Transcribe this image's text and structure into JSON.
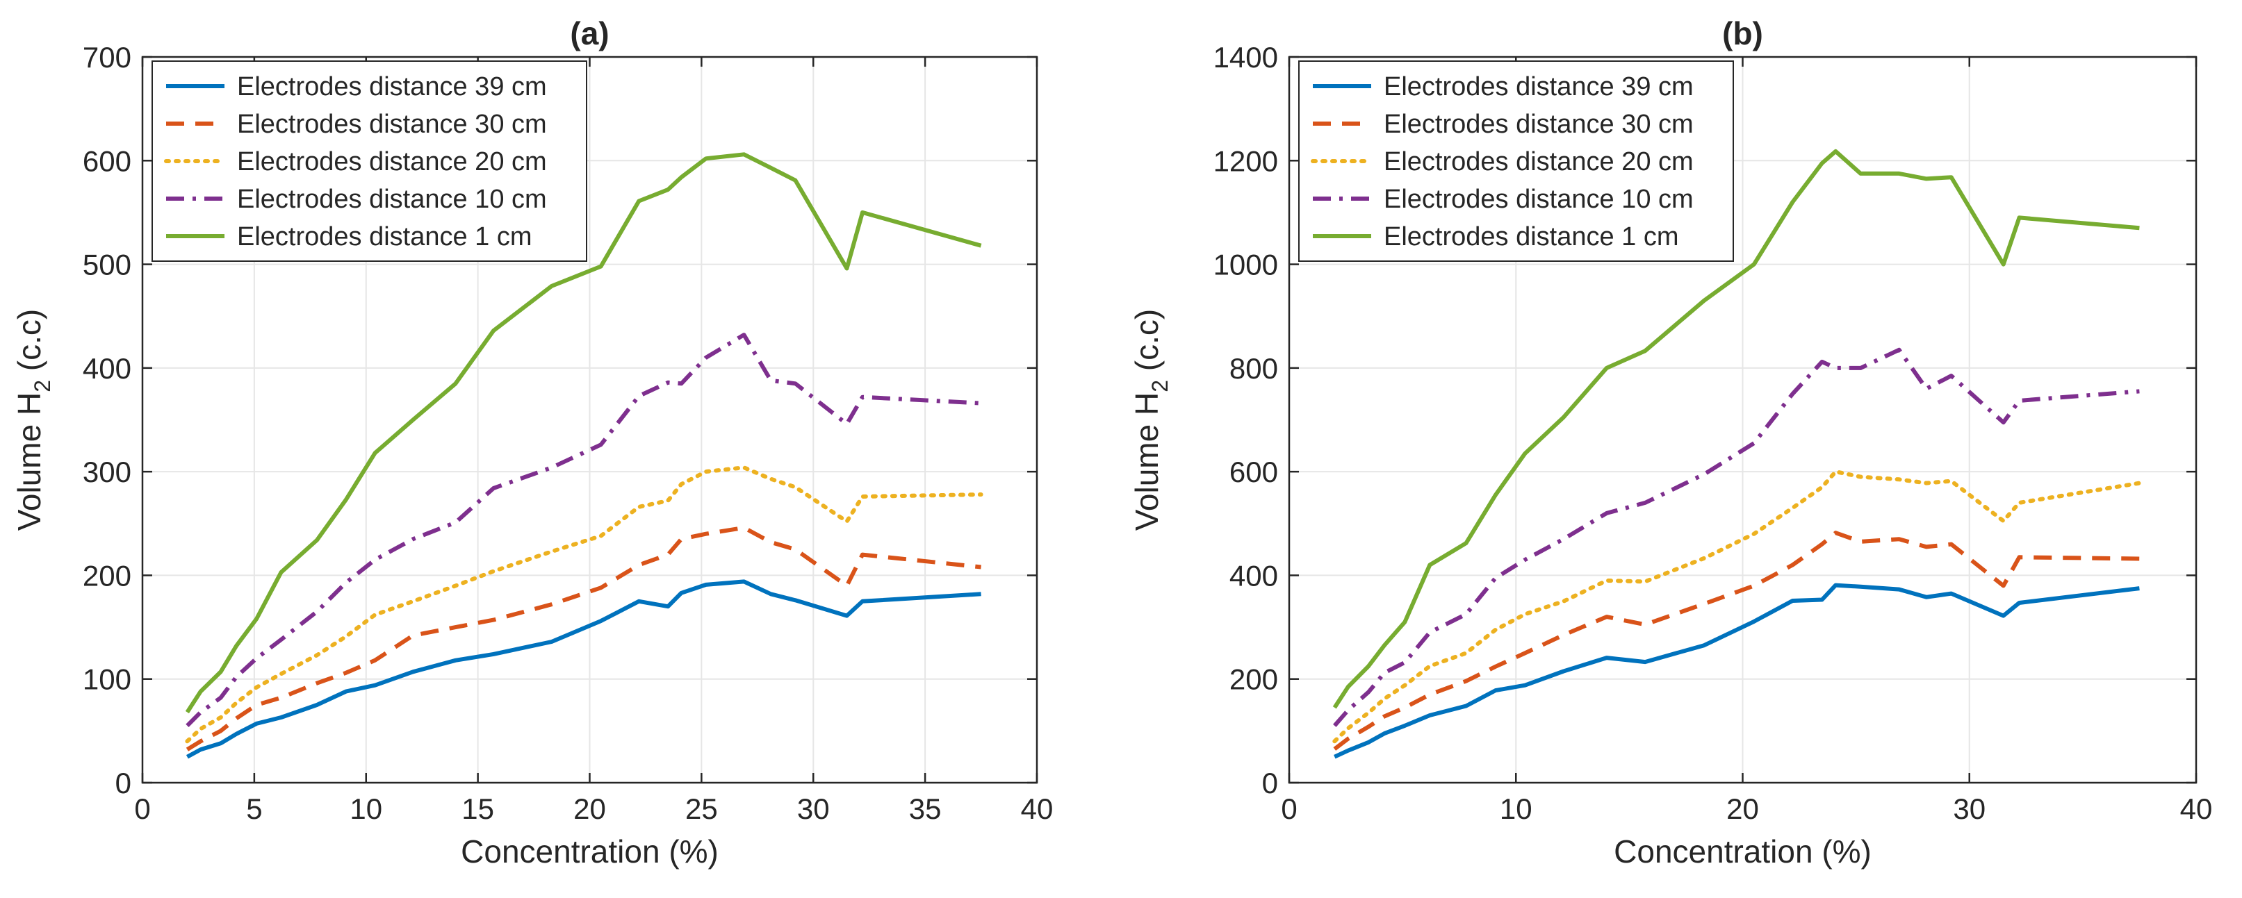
{
  "chart_data": [
    {
      "type": "line",
      "title": "(a)",
      "xlabel": "Concentration (%)",
      "ylabel": "Volume H",
      "ylabel_sub": "2",
      "ylabel_suffix": " (c.c)",
      "xlim": [
        0,
        40
      ],
      "ylim": [
        0,
        700
      ],
      "xticks": [
        0,
        5,
        10,
        15,
        20,
        25,
        30,
        35,
        40
      ],
      "yticks": [
        0,
        100,
        200,
        300,
        400,
        500,
        600,
        700
      ],
      "grid": true,
      "legend": "top-left",
      "series": [
        {
          "name": "Electrodes distance 39 cm",
          "color": "#0072BD",
          "dash": "solid",
          "x": [
            2,
            2.6,
            3.5,
            4.2,
            5.1,
            6.2,
            7.8,
            9.1,
            10.4,
            12.1,
            14,
            15.7,
            18.3,
            20.5,
            22.2,
            23.5,
            24.1,
            25.2,
            26.9,
            28.1,
            29.2,
            31.5,
            32.2,
            37.5
          ],
          "y": [
            25,
            32,
            38,
            47,
            57,
            63,
            75,
            88,
            94,
            107,
            118,
            124,
            136,
            156,
            175,
            170,
            183,
            191,
            194,
            182,
            176,
            161,
            175,
            182
          ]
        },
        {
          "name": "Electrodes distance 30 cm",
          "color": "#D95319",
          "dash": "dashed",
          "x": [
            2,
            2.6,
            3.5,
            4.2,
            5.1,
            6.2,
            7.8,
            9.1,
            10.4,
            12.1,
            14,
            15.7,
            18.3,
            20.5,
            22.2,
            23.5,
            24.1,
            25.2,
            26.9,
            28.1,
            29.2,
            31.5,
            32.2,
            37.5
          ],
          "y": [
            32,
            40,
            50,
            62,
            75,
            82,
            96,
            106,
            118,
            142,
            150,
            157,
            172,
            188,
            210,
            220,
            235,
            240,
            246,
            232,
            225,
            190,
            220,
            208
          ]
        },
        {
          "name": "Electrodes distance 20 cm",
          "color": "#EDB120",
          "dash": "dotted",
          "x": [
            2,
            2.6,
            3.5,
            4.2,
            5.1,
            6.2,
            7.8,
            9.1,
            10.4,
            12.1,
            14,
            15.7,
            18.3,
            20.5,
            22.2,
            23.5,
            24.1,
            25.2,
            26.9,
            28.1,
            29.2,
            31.5,
            32.2,
            37.5
          ],
          "y": [
            40,
            52,
            63,
            77,
            92,
            105,
            123,
            141,
            162,
            175,
            190,
            204,
            223,
            238,
            266,
            272,
            288,
            300,
            304,
            293,
            285,
            252,
            276,
            278
          ]
        },
        {
          "name": "Electrodes distance 10 cm",
          "color": "#7E2F8E",
          "dash": "dashdot",
          "x": [
            2,
            2.6,
            3.5,
            4.2,
            5.1,
            6.2,
            7.8,
            9.1,
            10.4,
            12.1,
            14,
            15.7,
            18.3,
            20.5,
            22.2,
            23.5,
            24.1,
            25.2,
            26.9,
            28.1,
            29.2,
            31.5,
            32.2,
            37.5
          ],
          "y": [
            55,
            68,
            82,
            102,
            120,
            138,
            165,
            193,
            215,
            235,
            251,
            284,
            304,
            326,
            373,
            386,
            385,
            410,
            432,
            388,
            385,
            346,
            372,
            366
          ]
        },
        {
          "name": "Electrodes distance 1 cm",
          "color": "#77AC30",
          "dash": "solid",
          "x": [
            2,
            2.6,
            3.5,
            4.2,
            5.1,
            6.2,
            7.8,
            9.1,
            10.4,
            12.1,
            14,
            15.7,
            18.3,
            20.5,
            22.2,
            23.5,
            24.1,
            25.2,
            26.9,
            28.1,
            29.2,
            31.5,
            32.2,
            37.5
          ],
          "y": [
            68,
            88,
            107,
            132,
            158,
            203,
            234,
            273,
            318,
            350,
            385,
            436,
            479,
            498,
            561,
            572,
            584,
            602,
            606,
            593,
            581,
            496,
            550,
            518
          ]
        }
      ]
    },
    {
      "type": "line",
      "title": "(b)",
      "xlabel": "Concentration (%)",
      "ylabel": "Volume H",
      "ylabel_sub": "2",
      "ylabel_suffix": " (c.c)",
      "xlim": [
        0,
        40
      ],
      "ylim": [
        0,
        1400
      ],
      "xticks": [
        0,
        10,
        20,
        30,
        40
      ],
      "yticks": [
        0,
        200,
        400,
        600,
        800,
        1000,
        1200,
        1400
      ],
      "grid": true,
      "legend": "top-left",
      "series": [
        {
          "name": "Electrodes distance 39 cm",
          "color": "#0072BD",
          "dash": "solid",
          "x": [
            2,
            2.6,
            3.5,
            4.2,
            5.1,
            6.2,
            7.8,
            9.1,
            10.4,
            12.1,
            14,
            15.7,
            18.3,
            20.5,
            22.2,
            23.5,
            24.1,
            25.2,
            26.9,
            28.1,
            29.2,
            31.5,
            32.2,
            37.5
          ],
          "y": [
            50,
            62,
            78,
            95,
            110,
            130,
            148,
            178,
            188,
            215,
            241,
            233,
            265,
            311,
            351,
            353,
            381,
            378,
            373,
            358,
            365,
            322,
            347,
            375
          ]
        },
        {
          "name": "Electrodes distance 30 cm",
          "color": "#D95319",
          "dash": "dashed",
          "x": [
            2,
            2.6,
            3.5,
            4.2,
            5.1,
            6.2,
            7.8,
            9.1,
            10.4,
            12.1,
            14,
            15.7,
            18.3,
            20.5,
            22.2,
            23.5,
            24.1,
            25.2,
            26.9,
            28.1,
            29.2,
            31.5,
            32.2,
            37.5
          ],
          "y": [
            65,
            85,
            108,
            128,
            145,
            170,
            196,
            224,
            250,
            285,
            320,
            305,
            345,
            380,
            420,
            460,
            482,
            465,
            470,
            455,
            460,
            380,
            435,
            432
          ]
        },
        {
          "name": "Electrodes distance 20 cm",
          "color": "#EDB120",
          "dash": "dotted",
          "x": [
            2,
            2.6,
            3.5,
            4.2,
            5.1,
            6.2,
            7.8,
            9.1,
            10.4,
            12.1,
            14,
            15.7,
            18.3,
            20.5,
            22.2,
            23.5,
            24.1,
            25.2,
            26.9,
            28.1,
            29.2,
            31.5,
            32.2,
            37.5
          ],
          "y": [
            80,
            105,
            135,
            162,
            188,
            225,
            250,
            295,
            325,
            350,
            390,
            388,
            433,
            480,
            530,
            570,
            600,
            590,
            585,
            578,
            582,
            505,
            540,
            578
          ]
        },
        {
          "name": "Electrodes distance 10 cm",
          "color": "#7E2F8E",
          "dash": "dashdot",
          "x": [
            2,
            2.6,
            3.5,
            4.2,
            5.1,
            6.2,
            7.8,
            9.1,
            10.4,
            12.1,
            14,
            15.7,
            18.3,
            20.5,
            22.2,
            23.5,
            24.1,
            25.2,
            26.9,
            28.1,
            29.2,
            31.5,
            32.2,
            37.5
          ],
          "y": [
            110,
            140,
            175,
            212,
            232,
            290,
            325,
            395,
            430,
            470,
            520,
            540,
            595,
            655,
            750,
            812,
            800,
            800,
            835,
            760,
            785,
            695,
            737,
            755
          ]
        },
        {
          "name": "Electrodes distance 1 cm",
          "color": "#77AC30",
          "dash": "solid",
          "x": [
            2,
            2.6,
            3.5,
            4.2,
            5.1,
            6.2,
            7.8,
            9.1,
            10.4,
            12.1,
            14,
            15.7,
            18.3,
            20.5,
            22.2,
            23.5,
            24.1,
            25.2,
            26.9,
            28.1,
            29.2,
            31.5,
            32.2,
            37.5
          ],
          "y": [
            145,
            185,
            225,
            265,
            310,
            420,
            462,
            555,
            635,
            705,
            800,
            833,
            930,
            1000,
            1120,
            1195,
            1218,
            1175,
            1175,
            1165,
            1168,
            1000,
            1090,
            1070
          ]
        }
      ]
    }
  ]
}
